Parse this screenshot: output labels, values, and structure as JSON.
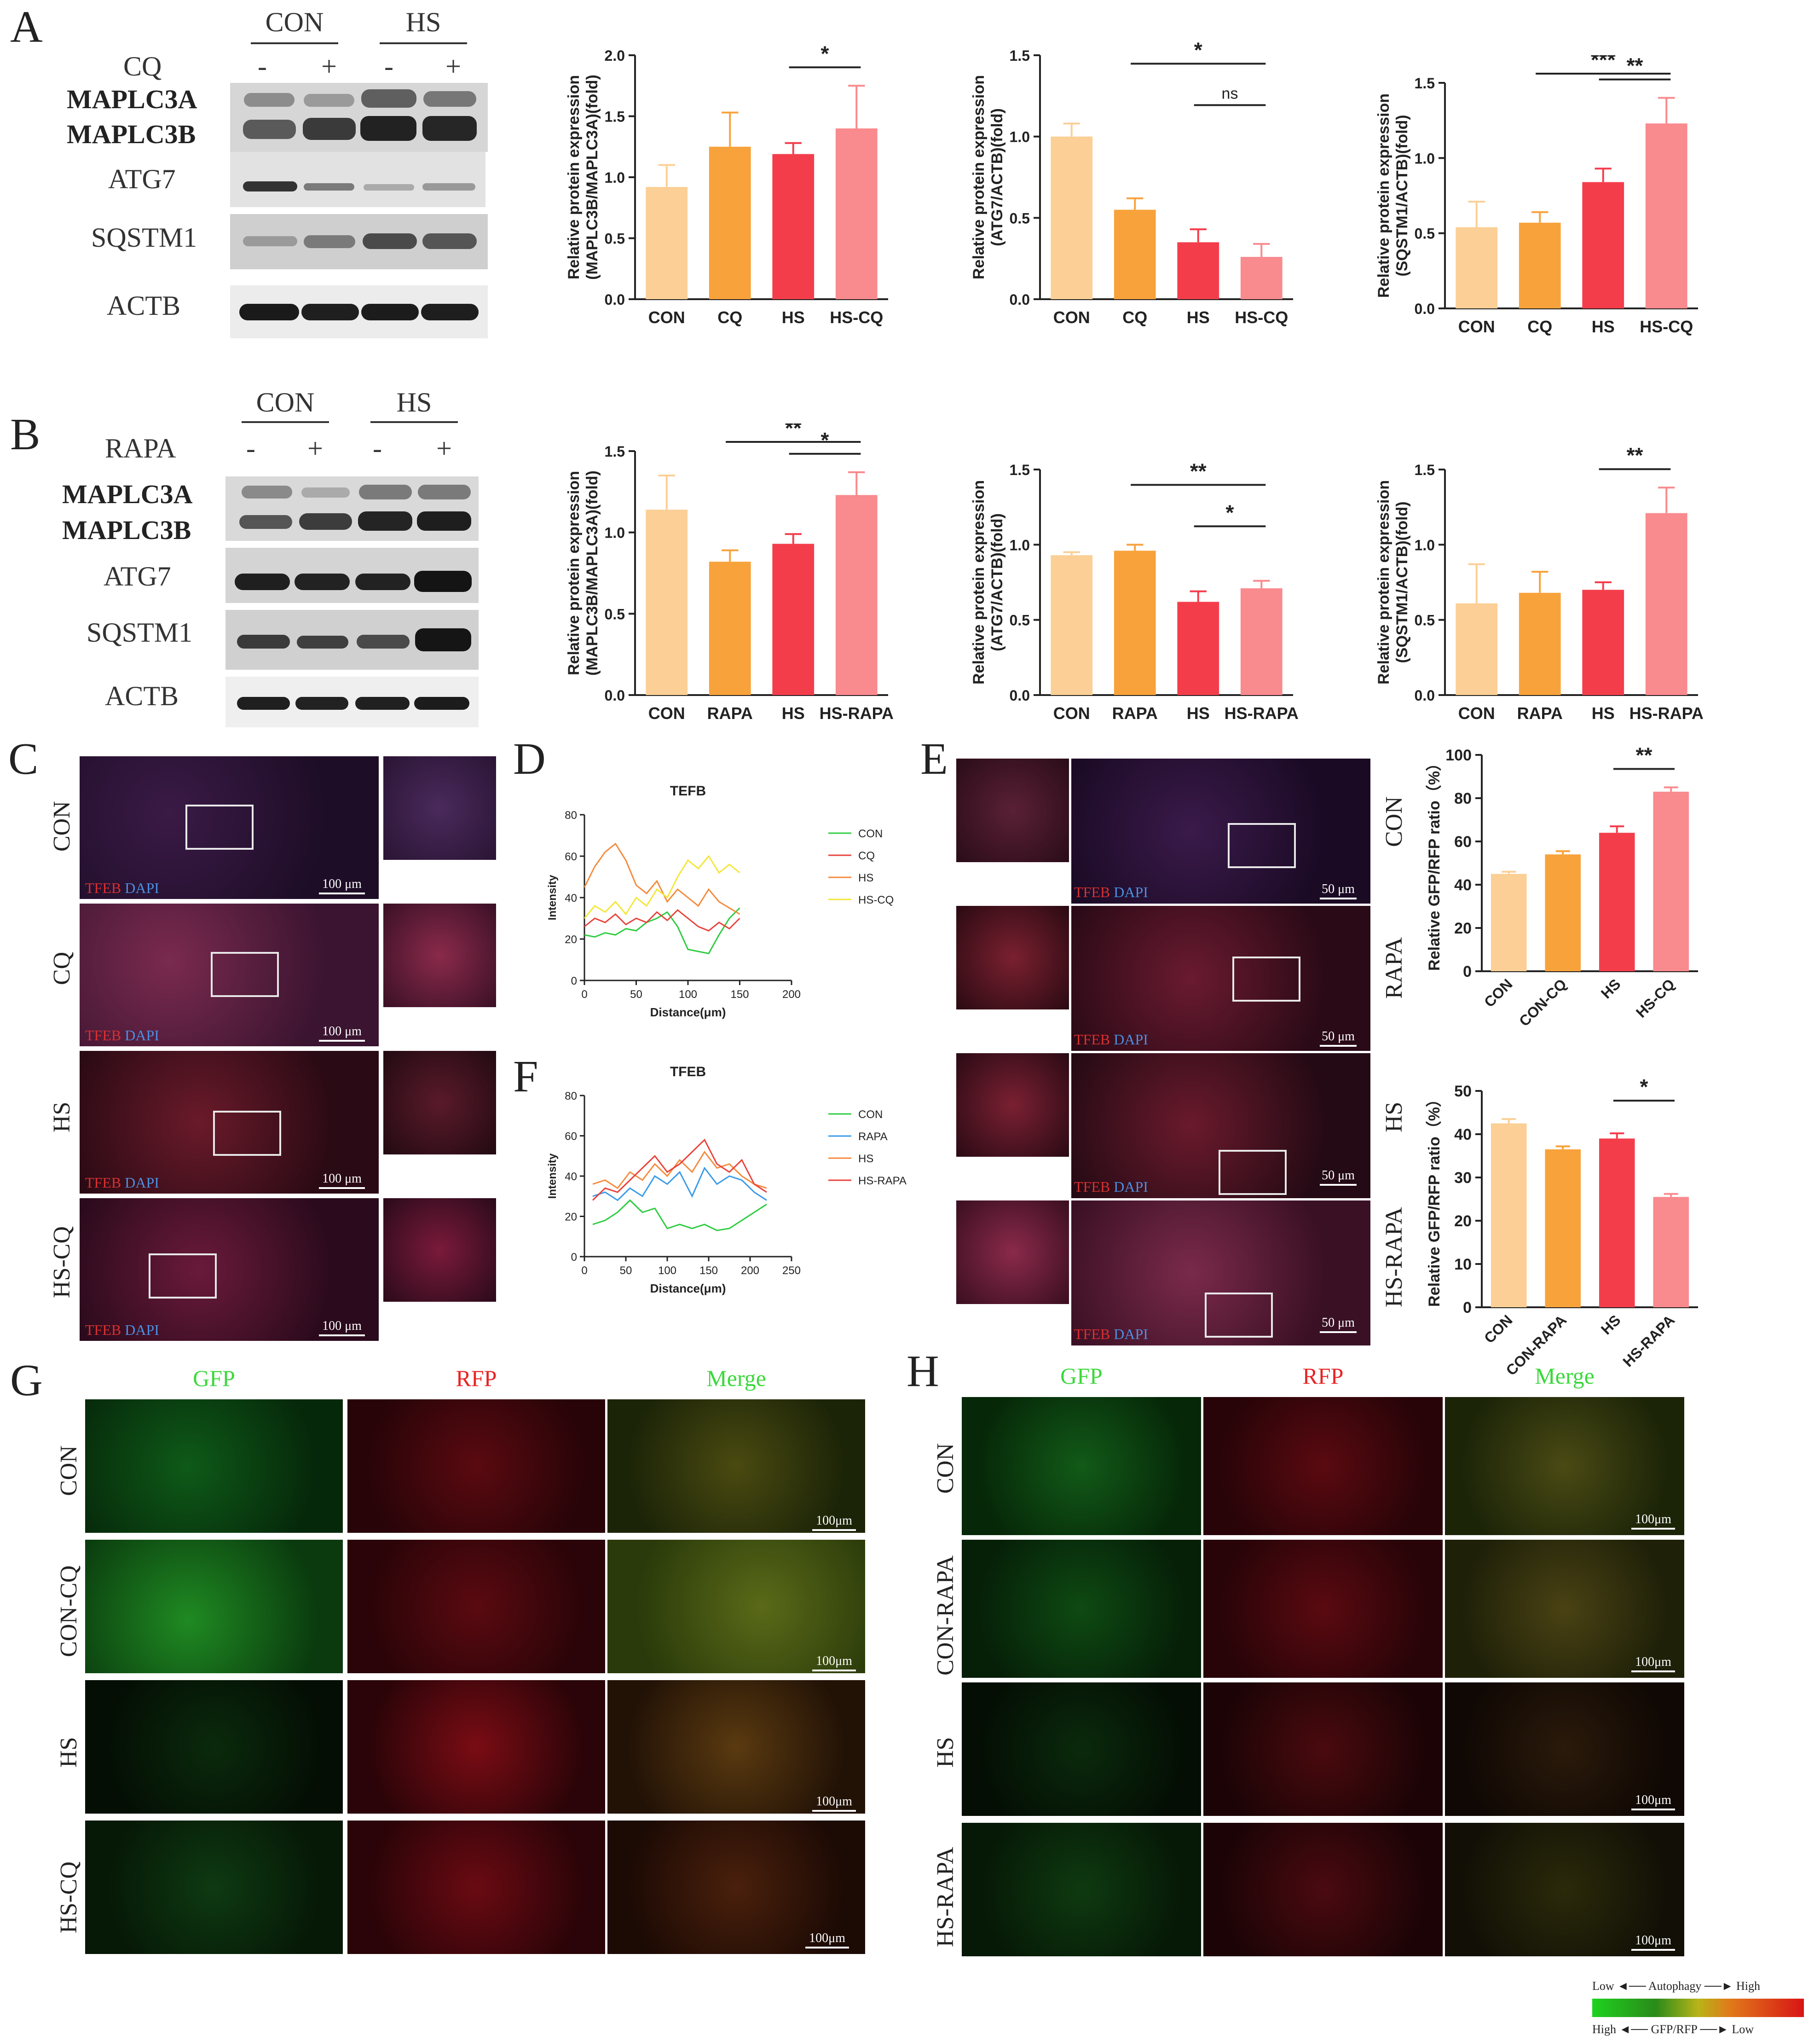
{
  "panels": {
    "A": "A",
    "B": "B",
    "C": "C",
    "D": "D",
    "E": "E",
    "F": "F",
    "G": "G",
    "H": "H"
  },
  "blotA": {
    "groups": [
      "CON",
      "HS"
    ],
    "treatment": "CQ",
    "signs": [
      "-",
      "+",
      "-",
      "+"
    ],
    "rows": [
      "MAPLC3A",
      "MAPLC3B",
      "ATG7",
      "SQSTM1",
      "ACTB"
    ]
  },
  "blotB": {
    "groups": [
      "CON",
      "HS"
    ],
    "treatment": "RAPA",
    "signs": [
      "-",
      "+",
      "-",
      "+"
    ],
    "rows": [
      "MAPLC3A",
      "MAPLC3B",
      "ATG7",
      "SQSTM1",
      "ACTB"
    ]
  },
  "colors": {
    "con": "#fbcf95",
    "treat": "#f8a23b",
    "hs": "#f43d4b",
    "hstreat": "#f98a8e",
    "line_con": "#2ecc40",
    "line_cq": "#e8423a",
    "line_hs": "#f58a3c",
    "line_hscq": "#f4e638",
    "line_rapa": "#3a9be8"
  },
  "chart_data": [
    {
      "id": "A1",
      "type": "bar",
      "categories": [
        "CON",
        "CQ",
        "HS",
        "HS-CQ"
      ],
      "values": [
        0.92,
        1.25,
        1.19,
        1.4
      ],
      "errors": [
        0.18,
        0.28,
        0.09,
        0.35
      ],
      "ylabel": "Relative protein expression\n(MAPLC3B/MAPLC3A)(fold)",
      "ylim": [
        0,
        2.0
      ],
      "ticks": [
        "0.0",
        "0.5",
        "1.0",
        "1.5",
        "2.0"
      ],
      "sig": [
        {
          "from": 2,
          "to": 3,
          "label": "*"
        }
      ]
    },
    {
      "id": "A2",
      "type": "bar",
      "categories": [
        "CON",
        "CQ",
        "HS",
        "HS-CQ"
      ],
      "values": [
        1.0,
        0.55,
        0.35,
        0.26
      ],
      "errors": [
        0.08,
        0.07,
        0.08,
        0.08
      ],
      "ylabel": "Relative protein expression\n(ATG7/ACTB)(fold)",
      "ylim": [
        0,
        1.5
      ],
      "ticks": [
        "0.0",
        "0.5",
        "1.0",
        "1.5"
      ],
      "sig": [
        {
          "from": 1,
          "to": 3,
          "label": "*"
        },
        {
          "from": 2,
          "to": 3,
          "label": "ns"
        }
      ]
    },
    {
      "id": "A3",
      "type": "bar",
      "categories": [
        "CON",
        "CQ",
        "HS",
        "HS-CQ"
      ],
      "values": [
        0.54,
        0.57,
        0.84,
        1.23
      ],
      "errors": [
        0.17,
        0.07,
        0.09,
        0.17
      ],
      "ylabel": "Relative protein expression\n(SQSTM1/ACTB)(fold)",
      "ylim": [
        0,
        1.5
      ],
      "ticks": [
        "0.0",
        "0.5",
        "1.0",
        "1.5"
      ],
      "sig": [
        {
          "from": 1,
          "to": 3,
          "label": "***"
        },
        {
          "from": 2,
          "to": 3,
          "label": "**"
        }
      ]
    },
    {
      "id": "B1",
      "type": "bar",
      "categories": [
        "CON",
        "RAPA",
        "HS",
        "HS-RAPA"
      ],
      "values": [
        1.14,
        0.82,
        0.93,
        1.23
      ],
      "errors": [
        0.21,
        0.07,
        0.06,
        0.14
      ],
      "ylabel": "Relative protein expression\n(MAPLC3B/MAPLC3A)(fold)",
      "ylim": [
        0,
        1.5
      ],
      "ticks": [
        "0.0",
        "0.5",
        "1.0",
        "1.5"
      ],
      "sig": [
        {
          "from": 1,
          "to": 3,
          "label": "**"
        },
        {
          "from": 2,
          "to": 3,
          "label": "*"
        }
      ]
    },
    {
      "id": "B2",
      "type": "bar",
      "categories": [
        "CON",
        "RAPA",
        "HS",
        "HS-RAPA"
      ],
      "values": [
        0.93,
        0.96,
        0.62,
        0.71
      ],
      "errors": [
        0.02,
        0.04,
        0.07,
        0.05
      ],
      "ylabel": "Relative protein expression\n(ATG7/ACTB)(fold)",
      "ylim": [
        0,
        1.5
      ],
      "ticks": [
        "0.0",
        "0.5",
        "1.0",
        "1.5"
      ],
      "sig": [
        {
          "from": 1,
          "to": 3,
          "label": "**"
        },
        {
          "from": 2,
          "to": 3,
          "label": "*"
        }
      ]
    },
    {
      "id": "B3",
      "type": "bar",
      "categories": [
        "CON",
        "RAPA",
        "HS",
        "HS-RAPA"
      ],
      "values": [
        0.61,
        0.68,
        0.7,
        1.21
      ],
      "errors": [
        0.26,
        0.14,
        0.05,
        0.17
      ],
      "ylabel": "Relative protein expression\n(SQSTM1/ACTB)(fold)",
      "ylim": [
        0,
        1.5
      ],
      "ticks": [
        "0.0",
        "0.5",
        "1.0",
        "1.5"
      ],
      "sig": [
        {
          "from": 2,
          "to": 3,
          "label": "**"
        }
      ]
    },
    {
      "id": "E1",
      "type": "bar",
      "categories": [
        "CON",
        "CON-CQ",
        "HS",
        "HS-CQ"
      ],
      "values": [
        45,
        54,
        64,
        83
      ],
      "errors": [
        1,
        1.5,
        3,
        2
      ],
      "ylabel": "Relative GFP/RFP ratio（%）",
      "ylim": [
        0,
        100
      ],
      "ticks": [
        "0",
        "20",
        "40",
        "60",
        "80",
        "100"
      ],
      "sig": [
        {
          "from": 2,
          "to": 3,
          "label": "**"
        }
      ]
    },
    {
      "id": "E2",
      "type": "bar",
      "categories": [
        "CON",
        "CON-RAPA",
        "HS",
        "HS-RAPA"
      ],
      "values": [
        42.5,
        36.5,
        39,
        25.5
      ],
      "errors": [
        1,
        0.7,
        1.2,
        0.7
      ],
      "ylabel": "Relative GFP/RFP ratio（%）",
      "ylim": [
        0,
        50
      ],
      "ticks": [
        "0",
        "10",
        "20",
        "30",
        "40",
        "50"
      ],
      "sig": [
        {
          "from": 2,
          "to": 3,
          "label": "*"
        }
      ]
    },
    {
      "id": "D",
      "type": "line",
      "title": "TEFB",
      "xlabel": "Distance(μm)",
      "ylabel": "Intensity",
      "xlim": [
        0,
        200
      ],
      "ylim": [
        0,
        80
      ],
      "xticks": [
        "0",
        "50",
        "100",
        "150",
        "200"
      ],
      "yticks": [
        "0",
        "20",
        "40",
        "60",
        "80"
      ],
      "series": [
        {
          "name": "CON",
          "color": "#2ecc40",
          "x": [
            0,
            10,
            20,
            30,
            40,
            50,
            60,
            70,
            80,
            90,
            100,
            110,
            120,
            130,
            140,
            150
          ],
          "y": [
            22,
            21,
            23,
            22,
            25,
            24,
            28,
            30,
            33,
            26,
            15,
            14,
            13,
            22,
            30,
            35
          ]
        },
        {
          "name": "CQ",
          "color": "#e8423a",
          "x": [
            0,
            10,
            20,
            30,
            40,
            50,
            60,
            70,
            80,
            90,
            100,
            110,
            120,
            130,
            140,
            150
          ],
          "y": [
            26,
            30,
            28,
            32,
            27,
            30,
            28,
            33,
            29,
            34,
            30,
            26,
            24,
            28,
            25,
            30
          ]
        },
        {
          "name": "HS",
          "color": "#f58a3c",
          "x": [
            0,
            10,
            20,
            30,
            40,
            50,
            60,
            70,
            80,
            90,
            100,
            110,
            120,
            130,
            140,
            150
          ],
          "y": [
            45,
            55,
            62,
            66,
            58,
            46,
            42,
            48,
            38,
            44,
            40,
            36,
            44,
            38,
            35,
            32
          ]
        },
        {
          "name": "HS-CQ",
          "color": "#f4e638",
          "x": [
            0,
            10,
            20,
            30,
            40,
            50,
            60,
            70,
            80,
            90,
            100,
            110,
            120,
            130,
            140,
            150
          ],
          "y": [
            30,
            36,
            33,
            38,
            32,
            40,
            36,
            44,
            40,
            50,
            58,
            54,
            60,
            52,
            56,
            52
          ]
        }
      ]
    },
    {
      "id": "F",
      "type": "line",
      "title": "TFEB",
      "xlabel": "Distance(μm)",
      "ylabel": "Intensity",
      "xlim": [
        0,
        250
      ],
      "ylim": [
        0,
        80
      ],
      "xticks": [
        "0",
        "50",
        "100",
        "150",
        "200",
        "250"
      ],
      "yticks": [
        "0",
        "20",
        "40",
        "60",
        "80"
      ],
      "series": [
        {
          "name": "CON",
          "color": "#2ecc40",
          "x": [
            10,
            25,
            40,
            55,
            70,
            85,
            100,
            115,
            130,
            145,
            160,
            175,
            190,
            205,
            220
          ],
          "y": [
            16,
            18,
            22,
            28,
            22,
            24,
            14,
            16,
            14,
            16,
            13,
            14,
            18,
            22,
            26
          ]
        },
        {
          "name": "RAPA",
          "color": "#3a9be8",
          "x": [
            10,
            25,
            40,
            55,
            70,
            85,
            100,
            115,
            130,
            145,
            160,
            175,
            190,
            205,
            220
          ],
          "y": [
            30,
            32,
            28,
            34,
            30,
            40,
            36,
            42,
            30,
            44,
            36,
            40,
            38,
            32,
            28
          ]
        },
        {
          "name": "HS",
          "color": "#f58a3c",
          "x": [
            10,
            25,
            40,
            55,
            70,
            85,
            100,
            115,
            130,
            145,
            160,
            175,
            190,
            205,
            220
          ],
          "y": [
            36,
            38,
            34,
            42,
            38,
            46,
            40,
            48,
            42,
            52,
            44,
            46,
            40,
            36,
            34
          ]
        },
        {
          "name": "HS-RAPA",
          "color": "#e8423a",
          "x": [
            10,
            25,
            40,
            55,
            70,
            85,
            100,
            115,
            130,
            145,
            160,
            175,
            190,
            205,
            220
          ],
          "y": [
            28,
            34,
            32,
            38,
            44,
            50,
            42,
            46,
            52,
            58,
            46,
            42,
            48,
            36,
            32
          ]
        }
      ]
    }
  ],
  "panelC": {
    "rows": [
      "CON",
      "CQ",
      "HS",
      "HS-CQ"
    ],
    "stain_red": "TFEB",
    "stain_blue": "DAPI",
    "scale": "100 μm"
  },
  "panelE": {
    "rows": [
      "CON",
      "RAPA",
      "HS",
      "HS-RAPA"
    ],
    "stain_red": "TFEB",
    "stain_blue": "DAPI",
    "scale": "50 μm"
  },
  "panelG": {
    "channels": [
      "GFP",
      "RFP",
      "Merge"
    ],
    "rows": [
      "CON",
      "CON-CQ",
      "HS",
      "HS-CQ"
    ],
    "scale": "100μm"
  },
  "panelH": {
    "channels": [
      "GFP",
      "RFP",
      "Merge"
    ],
    "rows": [
      "CON",
      "CON-RAPA",
      "HS",
      "HS-RAPA"
    ],
    "scale": "100μm"
  },
  "legend_bar": {
    "low": "Low",
    "autophagy": "Autophagy",
    "high": "High",
    "high2": "High",
    "ratio": "GFP/RFP",
    "low2": "Low"
  }
}
